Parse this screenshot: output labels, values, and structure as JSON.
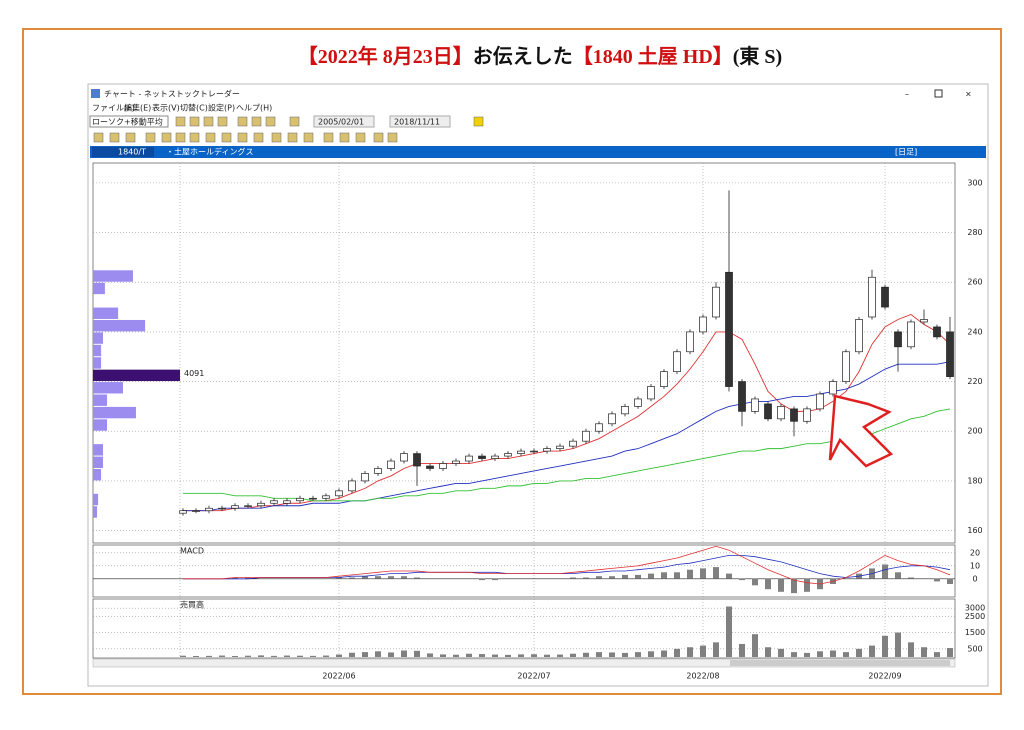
{
  "headline": {
    "part1": "【2022年 8月23日】",
    "part2": "お伝えした",
    "part3": "【1840 土屋 HD】",
    "part4": "(東 S)"
  },
  "window": {
    "title": "チャート - ネットストックトレーダー",
    "menu": [
      "ファイル(F)",
      "編集(E)",
      "表示(V)",
      "切替(C)",
      "設定(P)",
      "ヘルプ(H)"
    ],
    "chart_type_select": "ローソク+移動平均",
    "date_from": "2005/02/01",
    "date_to": "2018/11/11",
    "code": "1840/T",
    "name": "・土屋ホールディングス",
    "period": "[日足]"
  },
  "chart_data": {
    "type": "candlestick",
    "ylim": [
      155,
      308
    ],
    "yticks": [
      160,
      180,
      200,
      220,
      240,
      260,
      280,
      300
    ],
    "xticks": [
      {
        "value": 12,
        "label": "2022/06"
      },
      {
        "value": 27,
        "label": "2022/07"
      },
      {
        "value": 40,
        "label": "2022/08"
      },
      {
        "value": 54,
        "label": "2022/09"
      }
    ],
    "up_color": "#ffffff",
    "down_color": "#333333",
    "open": [
      167,
      168,
      168,
      169,
      169,
      170,
      170,
      171,
      171,
      172,
      173,
      173,
      174,
      176,
      180,
      183,
      185,
      188,
      191,
      186,
      185,
      187,
      188,
      190,
      189,
      190,
      191,
      192,
      192,
      193,
      194,
      196,
      200,
      203,
      207,
      210,
      213,
      218,
      224,
      232,
      240,
      246,
      264,
      220,
      208,
      211,
      205,
      209,
      204,
      209,
      215,
      220,
      232,
      246,
      258,
      240,
      234,
      244,
      242,
      240
    ],
    "high": [
      169,
      169,
      170,
      170,
      171,
      171,
      172,
      173,
      173,
      174,
      174,
      175,
      177,
      181,
      184,
      186,
      189,
      192,
      192,
      187,
      188,
      189,
      191,
      191,
      191,
      192,
      193,
      193,
      194,
      195,
      197,
      201,
      204,
      208,
      211,
      214,
      219,
      225,
      233,
      241,
      247,
      260,
      297,
      221,
      214,
      212,
      211,
      210,
      210,
      216,
      221,
      233,
      246,
      265,
      259,
      241,
      245,
      249,
      243,
      246
    ],
    "low": [
      166,
      167,
      167,
      168,
      168,
      169,
      169,
      170,
      170,
      171,
      172,
      172,
      173,
      175,
      179,
      182,
      184,
      187,
      178,
      184,
      184,
      186,
      187,
      188,
      188,
      189,
      190,
      191,
      191,
      192,
      193,
      195,
      199,
      202,
      206,
      209,
      212,
      217,
      223,
      231,
      239,
      245,
      216,
      202,
      207,
      204,
      204,
      198,
      203,
      208,
      214,
      219,
      231,
      245,
      249,
      224,
      233,
      243,
      237,
      221
    ],
    "close": [
      168,
      168,
      169,
      169,
      170,
      170,
      171,
      172,
      172,
      173,
      173,
      174,
      176,
      180,
      183,
      185,
      188,
      191,
      186,
      185,
      187,
      188,
      190,
      189,
      190,
      191,
      192,
      192,
      193,
      194,
      196,
      200,
      203,
      207,
      210,
      213,
      218,
      224,
      232,
      240,
      246,
      258,
      218,
      208,
      213,
      205,
      210,
      204,
      209,
      215,
      220,
      232,
      245,
      262,
      250,
      234,
      244,
      245,
      238,
      222
    ],
    "ma_lines": [
      {
        "color": "#e03030",
        "values": [
          168,
          168,
          168,
          168,
          169,
          169,
          170,
          170,
          171,
          171,
          172,
          172,
          173,
          175,
          177,
          180,
          182,
          185,
          187,
          187,
          187,
          187,
          187,
          188,
          189,
          189,
          190,
          191,
          192,
          192,
          193,
          195,
          197,
          200,
          203,
          206,
          210,
          214,
          219,
          225,
          232,
          240,
          240,
          237,
          227,
          216,
          211,
          208,
          208,
          209,
          212,
          216,
          224,
          235,
          242,
          245,
          247,
          243,
          240,
          235
        ]
      },
      {
        "color": "#2030c0",
        "values": [
          168,
          168,
          168,
          169,
          169,
          169,
          169,
          170,
          170,
          170,
          171,
          171,
          171,
          172,
          172,
          173,
          174,
          175,
          176,
          177,
          178,
          179,
          179,
          180,
          181,
          182,
          183,
          184,
          185,
          186,
          187,
          188,
          189,
          190,
          192,
          193,
          195,
          197,
          199,
          202,
          205,
          208,
          210,
          211,
          212,
          212,
          213,
          214,
          214,
          215,
          216,
          217,
          219,
          222,
          225,
          227,
          227,
          227,
          227,
          228
        ]
      },
      {
        "color": "#30c030",
        "values": [
          175,
          175,
          175,
          175,
          174,
          174,
          174,
          173,
          173,
          173,
          172,
          172,
          172,
          172,
          172,
          173,
          173,
          174,
          174,
          175,
          175,
          176,
          176,
          177,
          177,
          178,
          178,
          179,
          179,
          180,
          180,
          181,
          181,
          182,
          183,
          184,
          185,
          186,
          187,
          188,
          189,
          190,
          191,
          192,
          192,
          193,
          193,
          194,
          195,
          195,
          196,
          197,
          198,
          199,
          201,
          203,
          205,
          206,
          208,
          209
        ]
      }
    ],
    "volume_profile": {
      "color": "#9c8cf0",
      "highlight_color": "#3c1070",
      "prices": [
        262.5,
        257.5,
        247.5,
        242.5,
        237.5,
        232.5,
        227.5,
        222.5,
        217.5,
        212.5,
        207.5,
        202.5,
        192.5,
        187.5,
        182.5,
        172.5,
        167.5
      ],
      "values": [
        1880,
        560,
        1180,
        2450,
        470,
        380,
        380,
        4091,
        1410,
        660,
        2020,
        660,
        470,
        470,
        380,
        240,
        190
      ]
    },
    "macd": {
      "title": "MACD",
      "ylim": [
        -14,
        26
      ],
      "yticks": [
        0,
        10,
        20
      ],
      "macd_color": "#e03030",
      "signal_color": "#2030c0",
      "hist_color": "#808080",
      "macd": [
        0,
        0,
        0,
        0,
        1,
        1,
        1,
        1,
        1,
        1,
        1,
        1,
        2,
        3,
        4,
        5,
        6,
        6,
        6,
        5,
        5,
        5,
        5,
        4,
        4,
        4,
        4,
        4,
        4,
        4,
        5,
        6,
        7,
        8,
        9,
        10,
        12,
        14,
        16,
        19,
        22,
        25,
        22,
        17,
        12,
        7,
        3,
        -1,
        -3,
        -4,
        -2,
        1,
        6,
        12,
        18,
        14,
        11,
        10,
        7,
        3
      ],
      "signal": [
        0,
        0,
        0,
        0,
        0,
        0,
        1,
        1,
        1,
        1,
        1,
        1,
        1,
        2,
        2,
        3,
        4,
        4,
        5,
        5,
        5,
        5,
        5,
        5,
        5,
        4,
        4,
        4,
        4,
        4,
        4,
        5,
        5,
        6,
        6,
        7,
        8,
        9,
        11,
        12,
        14,
        16,
        18,
        18,
        17,
        15,
        13,
        10,
        7,
        4,
        2,
        1,
        2,
        4,
        7,
        9,
        10,
        10,
        9,
        7
      ],
      "histogram": [
        0,
        0,
        0,
        0,
        1,
        1,
        0,
        0,
        0,
        0,
        0,
        0,
        1,
        1,
        2,
        2,
        2,
        2,
        1,
        0,
        0,
        0,
        0,
        -1,
        -1,
        0,
        0,
        0,
        0,
        0,
        1,
        1,
        2,
        2,
        3,
        3,
        4,
        5,
        5,
        7,
        8,
        9,
        4,
        -1,
        -5,
        -8,
        -10,
        -11,
        -10,
        -8,
        -4,
        0,
        4,
        8,
        11,
        5,
        1,
        0,
        -2,
        -4
      ]
    },
    "volume": {
      "title": "売買高",
      "ylim": [
        0,
        3500
      ],
      "yticks": [
        500,
        1500,
        2500,
        3000
      ],
      "color": "#808080",
      "values": [
        80,
        60,
        70,
        90,
        60,
        80,
        100,
        70,
        90,
        80,
        70,
        90,
        150,
        260,
        300,
        350,
        280,
        400,
        380,
        220,
        160,
        140,
        200,
        180,
        150,
        130,
        160,
        170,
        140,
        150,
        200,
        260,
        300,
        280,
        250,
        300,
        350,
        400,
        500,
        600,
        700,
        900,
        3100,
        800,
        1400,
        600,
        500,
        300,
        250,
        350,
        400,
        300,
        500,
        700,
        1300,
        1500,
        900,
        600,
        300,
        550
      ]
    }
  }
}
